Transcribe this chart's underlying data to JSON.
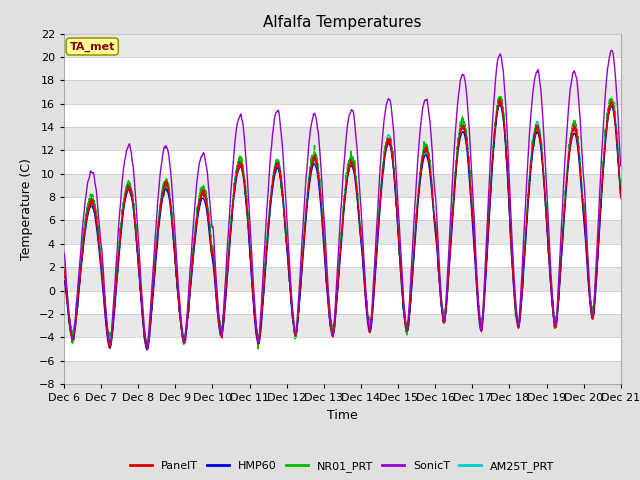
{
  "title": "Alfalfa Temperatures",
  "xlabel": "Time",
  "ylabel": "Temperature (C)",
  "ylim": [
    -8,
    22
  ],
  "yticks": [
    -8,
    -6,
    -4,
    -2,
    0,
    2,
    4,
    6,
    8,
    10,
    12,
    14,
    16,
    18,
    20,
    22
  ],
  "xtick_labels": [
    "Dec 6",
    "Dec 7",
    "Dec 8",
    "Dec 9",
    "Dec 10",
    "Dec 11",
    "Dec 12",
    "Dec 13",
    "Dec 14",
    "Dec 15",
    "Dec 16",
    "Dec 17",
    "Dec 18",
    "Dec 19",
    "Dec 20",
    "Dec 21"
  ],
  "n_days": 15,
  "points_per_day": 288,
  "fig_bg_color": "#e0e0e0",
  "plot_bg_color": "#ffffff",
  "grid_color": "#cccccc",
  "legend_label": "TA_met",
  "legend_text_color": "#8b0000",
  "legend_box_color": "#ffff99",
  "legend_box_edge": "#999900",
  "series": {
    "PanelT": {
      "color": "#dd0000",
      "lw": 0.8,
      "zorder": 4
    },
    "HMP60": {
      "color": "#0000dd",
      "lw": 1.0,
      "zorder": 3
    },
    "NR01_PRT": {
      "color": "#00bb00",
      "lw": 1.0,
      "zorder": 2
    },
    "SonicT": {
      "color": "#9900cc",
      "lw": 1.0,
      "zorder": 5
    },
    "AM25T_PRT": {
      "color": "#00cccc",
      "lw": 1.0,
      "zorder": 1
    }
  }
}
